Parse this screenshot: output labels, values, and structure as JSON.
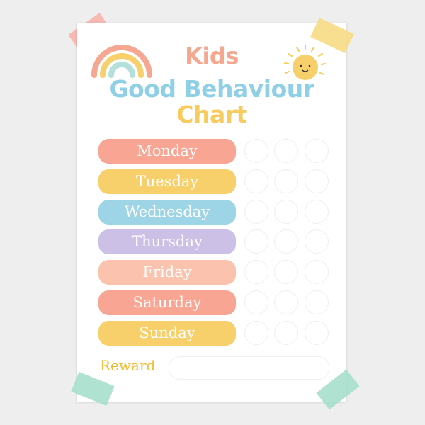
{
  "title": {
    "line1": "Kids",
    "line2": "Good Behaviour",
    "line3": "Chart"
  },
  "days": [
    {
      "label": "Monday",
      "color": "#f9a593"
    },
    {
      "label": "Tuesday",
      "color": "#f8d06b"
    },
    {
      "label": "Wednesday",
      "color": "#9dd5e6"
    },
    {
      "label": "Thursday",
      "color": "#cdc0e6"
    },
    {
      "label": "Friday",
      "color": "#fbc2ad"
    },
    {
      "label": "Saturday",
      "color": "#f9a593"
    },
    {
      "label": "Sunday",
      "color": "#f8d06b"
    }
  ],
  "reward": {
    "label": "Reward",
    "value": ""
  },
  "colors": {
    "background": "#eeeeee",
    "tape_pink": "#f9b3ac",
    "tape_yellow": "#f7da83",
    "tape_mint": "#a6dfcc"
  },
  "icons": [
    "rainbow-icon",
    "sun-icon"
  ]
}
